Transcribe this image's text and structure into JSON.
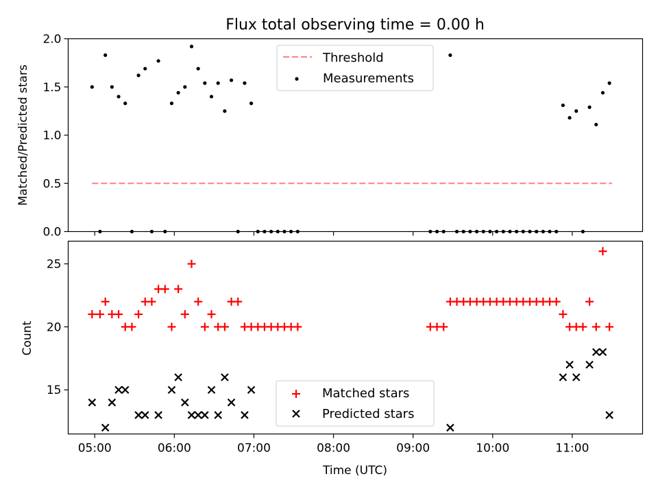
{
  "figure": {
    "title": "Flux total observing time = 0.00 h",
    "xlabel": "Time (UTC)",
    "x_ticks": [
      "05:00",
      "06:00",
      "07:00",
      "08:00",
      "09:00",
      "10:00",
      "11:00"
    ]
  },
  "chart_data": [
    {
      "type": "scatter",
      "ylabel": "Matched/Predicted stars",
      "xlim": [
        "04:40",
        "11:53"
      ],
      "ylim": [
        0,
        2.0
      ],
      "y_ticks": [
        "0.0",
        "0.5",
        "1.0",
        "1.5",
        "2.0"
      ],
      "legend_position": "top-center",
      "series": [
        {
          "name": "Threshold",
          "style": "dashed-line",
          "color": "#ff7f7f",
          "x": [
            "04:58",
            "11:30"
          ],
          "y": [
            0.5,
            0.5
          ]
        },
        {
          "name": "Measurements",
          "style": "dot",
          "color": "#000000",
          "points": [
            [
              "04:58",
              1.5
            ],
            [
              "05:04",
              0.0
            ],
            [
              "05:08",
              1.83
            ],
            [
              "05:13",
              1.5
            ],
            [
              "05:18",
              1.4
            ],
            [
              "05:23",
              1.33
            ],
            [
              "05:28",
              0.0
            ],
            [
              "05:33",
              1.62
            ],
            [
              "05:38",
              1.69
            ],
            [
              "05:43",
              0.0
            ],
            [
              "05:48",
              1.77
            ],
            [
              "05:53",
              0.0
            ],
            [
              "05:58",
              1.33
            ],
            [
              "06:03",
              1.44
            ],
            [
              "06:08",
              1.5
            ],
            [
              "06:13",
              1.92
            ],
            [
              "06:18",
              1.69
            ],
            [
              "06:23",
              1.54
            ],
            [
              "06:28",
              1.4
            ],
            [
              "06:33",
              1.54
            ],
            [
              "06:38",
              1.25
            ],
            [
              "06:43",
              1.57
            ],
            [
              "06:48",
              0.0
            ],
            [
              "06:53",
              1.54
            ],
            [
              "06:58",
              1.33
            ],
            [
              "07:03",
              0.0
            ],
            [
              "07:08",
              0.0
            ],
            [
              "07:13",
              0.0
            ],
            [
              "07:18",
              0.0
            ],
            [
              "07:23",
              0.0
            ],
            [
              "07:28",
              0.0
            ],
            [
              "07:33",
              0.0
            ],
            [
              "09:13",
              0.0
            ],
            [
              "09:18",
              0.0
            ],
            [
              "09:23",
              0.0
            ],
            [
              "09:28",
              1.83
            ],
            [
              "09:33",
              0.0
            ],
            [
              "09:38",
              0.0
            ],
            [
              "09:43",
              0.0
            ],
            [
              "09:48",
              0.0
            ],
            [
              "09:53",
              0.0
            ],
            [
              "09:58",
              0.0
            ],
            [
              "10:03",
              0.0
            ],
            [
              "10:08",
              0.0
            ],
            [
              "10:13",
              0.0
            ],
            [
              "10:18",
              0.0
            ],
            [
              "10:23",
              0.0
            ],
            [
              "10:28",
              0.0
            ],
            [
              "10:33",
              0.0
            ],
            [
              "10:38",
              0.0
            ],
            [
              "10:43",
              0.0
            ],
            [
              "10:48",
              0.0
            ],
            [
              "10:53",
              1.31
            ],
            [
              "10:58",
              1.18
            ],
            [
              "11:03",
              1.25
            ],
            [
              "11:08",
              0.0
            ],
            [
              "11:13",
              1.29
            ],
            [
              "11:18",
              1.11
            ],
            [
              "11:23",
              1.44
            ],
            [
              "11:28",
              1.54
            ]
          ]
        }
      ]
    },
    {
      "type": "scatter",
      "ylabel": "Count",
      "xlabel": "Time (UTC)",
      "xlim": [
        "04:40",
        "11:53"
      ],
      "ylim": [
        11.5,
        26.8
      ],
      "y_ticks": [
        "15",
        "20",
        "25"
      ],
      "legend_position": "bottom-center",
      "series": [
        {
          "name": "Matched stars",
          "marker": "plus",
          "color": "#ff0000",
          "points": [
            [
              "04:58",
              21
            ],
            [
              "05:04",
              21
            ],
            [
              "05:08",
              22
            ],
            [
              "05:13",
              21
            ],
            [
              "05:18",
              21
            ],
            [
              "05:23",
              20
            ],
            [
              "05:28",
              20
            ],
            [
              "05:33",
              21
            ],
            [
              "05:38",
              22
            ],
            [
              "05:43",
              22
            ],
            [
              "05:48",
              23
            ],
            [
              "05:53",
              23
            ],
            [
              "05:58",
              20
            ],
            [
              "06:03",
              23
            ],
            [
              "06:08",
              21
            ],
            [
              "06:13",
              25
            ],
            [
              "06:18",
              22
            ],
            [
              "06:23",
              20
            ],
            [
              "06:28",
              21
            ],
            [
              "06:33",
              20
            ],
            [
              "06:38",
              20
            ],
            [
              "06:43",
              22
            ],
            [
              "06:48",
              22
            ],
            [
              "06:53",
              20
            ],
            [
              "06:58",
              20
            ],
            [
              "07:03",
              20
            ],
            [
              "07:08",
              20
            ],
            [
              "07:13",
              20
            ],
            [
              "07:18",
              20
            ],
            [
              "07:23",
              20
            ],
            [
              "07:28",
              20
            ],
            [
              "07:33",
              20
            ],
            [
              "09:13",
              20
            ],
            [
              "09:18",
              20
            ],
            [
              "09:23",
              20
            ],
            [
              "09:28",
              22
            ],
            [
              "09:33",
              22
            ],
            [
              "09:38",
              22
            ],
            [
              "09:43",
              22
            ],
            [
              "09:48",
              22
            ],
            [
              "09:53",
              22
            ],
            [
              "09:58",
              22
            ],
            [
              "10:03",
              22
            ],
            [
              "10:08",
              22
            ],
            [
              "10:13",
              22
            ],
            [
              "10:18",
              22
            ],
            [
              "10:23",
              22
            ],
            [
              "10:28",
              22
            ],
            [
              "10:33",
              22
            ],
            [
              "10:38",
              22
            ],
            [
              "10:43",
              22
            ],
            [
              "10:48",
              22
            ],
            [
              "10:53",
              21
            ],
            [
              "10:58",
              20
            ],
            [
              "11:03",
              20
            ],
            [
              "11:08",
              20
            ],
            [
              "11:13",
              22
            ],
            [
              "11:18",
              20
            ],
            [
              "11:23",
              26
            ],
            [
              "11:28",
              20
            ]
          ]
        },
        {
          "name": "Predicted stars",
          "marker": "x",
          "color": "#000000",
          "points": [
            [
              "04:58",
              14
            ],
            [
              "05:08",
              12
            ],
            [
              "05:13",
              14
            ],
            [
              "05:18",
              15
            ],
            [
              "05:23",
              15
            ],
            [
              "05:33",
              13
            ],
            [
              "05:38",
              13
            ],
            [
              "05:48",
              13
            ],
            [
              "05:58",
              15
            ],
            [
              "06:03",
              16
            ],
            [
              "06:08",
              14
            ],
            [
              "06:13",
              13
            ],
            [
              "06:18",
              13
            ],
            [
              "06:23",
              13
            ],
            [
              "06:28",
              15
            ],
            [
              "06:33",
              13
            ],
            [
              "06:38",
              16
            ],
            [
              "06:43",
              14
            ],
            [
              "06:53",
              13
            ],
            [
              "06:58",
              15
            ],
            [
              "09:28",
              12
            ],
            [
              "10:53",
              16
            ],
            [
              "10:58",
              17
            ],
            [
              "11:03",
              16
            ],
            [
              "11:13",
              17
            ],
            [
              "11:18",
              18
            ],
            [
              "11:23",
              18
            ],
            [
              "11:28",
              13
            ]
          ]
        }
      ]
    }
  ]
}
